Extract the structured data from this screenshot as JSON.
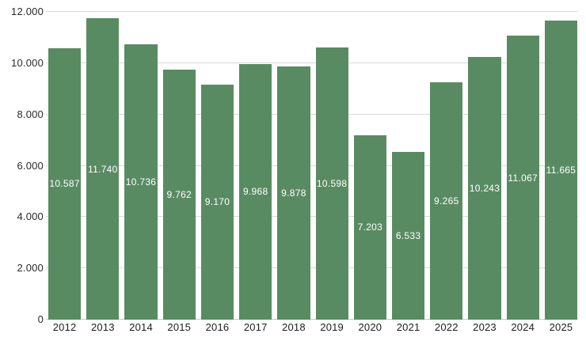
{
  "chart_data": {
    "type": "bar",
    "title": "",
    "xlabel": "",
    "ylabel": "",
    "categories": [
      "2012",
      "2013",
      "2014",
      "2015",
      "2016",
      "2017",
      "2018",
      "2019",
      "2020",
      "2021",
      "2022",
      "2023",
      "2024",
      "2025"
    ],
    "values": [
      10587,
      11740,
      10736,
      9762,
      9170,
      9968,
      9878,
      10598,
      7203,
      6533,
      9265,
      10243,
      11067,
      11665
    ],
    "value_labels": [
      "10.587",
      "11.740",
      "10.736",
      "9.762",
      "9.170",
      "9.968",
      "9.878",
      "10.598",
      "7.203",
      "6.533",
      "9.265",
      "10.243",
      "11.067",
      "11.665"
    ],
    "ylim": [
      0,
      12000
    ],
    "yticks": [
      {
        "value": 0,
        "label": "0"
      },
      {
        "value": 2000,
        "label": "2.000"
      },
      {
        "value": 4000,
        "label": "4.000"
      },
      {
        "value": 6000,
        "label": "6.000"
      },
      {
        "value": 8000,
        "label": "8.000"
      },
      {
        "value": 10000,
        "label": "10.000"
      },
      {
        "value": 12000,
        "label": "12.000"
      }
    ],
    "grid": "horizontal",
    "legend": "none",
    "colors": {
      "bar": "#598b62",
      "bar_label_text": "#ffffff",
      "gridline": "#d9d9d9",
      "baseline": "#c6c6c6",
      "axis_text": "#2a2a2a",
      "background": "#ffffff"
    }
  }
}
